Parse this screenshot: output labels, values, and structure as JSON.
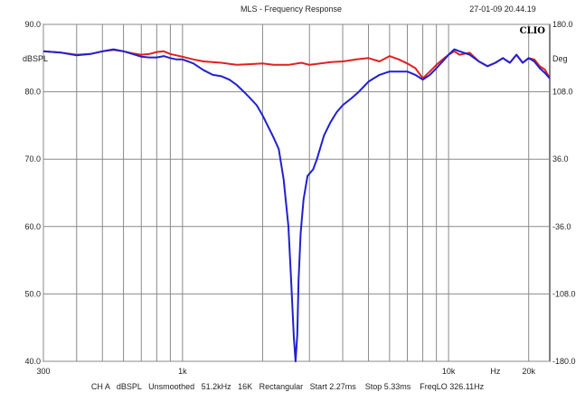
{
  "chart_data": {
    "type": "line",
    "title": "MLS - Frequency Response",
    "timestamp": "27-01-09 20.44.19",
    "logo": "CLIO",
    "x_scale": "log",
    "xlim": [
      300,
      24000
    ],
    "ylim": [
      40,
      90
    ],
    "ylim_right": [
      -180,
      180
    ],
    "left_unit": "dBSPL",
    "right_unit": "Deg",
    "x_ticks": [
      {
        "value": 300,
        "label": "300"
      },
      {
        "value": 1000,
        "label": "1k"
      },
      {
        "value": 10000,
        "label": "10k"
      },
      {
        "value": 15000,
        "label": "Hz"
      },
      {
        "value": 20000,
        "label": "20k"
      }
    ],
    "y_ticks_left": [
      {
        "value": 90,
        "label": "90.0"
      },
      {
        "value": 80,
        "label": "80.0"
      },
      {
        "value": 70,
        "label": "70.0"
      },
      {
        "value": 60,
        "label": "60.0"
      },
      {
        "value": 50,
        "label": "50.0"
      },
      {
        "value": 40,
        "label": "40.0"
      }
    ],
    "y_ticks_right": [
      {
        "value": 180,
        "label": "180.0"
      },
      {
        "value": 108,
        "label": "108.0"
      },
      {
        "value": 36,
        "label": "36.0"
      },
      {
        "value": -36,
        "label": "-36.0"
      },
      {
        "value": -108,
        "label": "-108.0"
      },
      {
        "value": -180,
        "label": "-180.0"
      }
    ],
    "x_gridlines": [
      300,
      400,
      500,
      600,
      700,
      800,
      900,
      1000,
      2000,
      3000,
      4000,
      5000,
      6000,
      7000,
      8000,
      9000,
      10000,
      20000
    ],
    "grid": true,
    "series": [
      {
        "color": "#e02020",
        "points": [
          [
            300,
            86.0
          ],
          [
            350,
            85.8
          ],
          [
            400,
            85.5
          ],
          [
            450,
            85.6
          ],
          [
            500,
            86.0
          ],
          [
            550,
            86.2
          ],
          [
            600,
            86.0
          ],
          [
            650,
            85.7
          ],
          [
            700,
            85.5
          ],
          [
            750,
            85.6
          ],
          [
            800,
            85.9
          ],
          [
            850,
            86.0
          ],
          [
            900,
            85.6
          ],
          [
            1000,
            85.2
          ],
          [
            1100,
            84.8
          ],
          [
            1200,
            84.5
          ],
          [
            1400,
            84.3
          ],
          [
            1600,
            84.0
          ],
          [
            1800,
            84.1
          ],
          [
            2000,
            84.2
          ],
          [
            2200,
            84.0
          ],
          [
            2500,
            84.0
          ],
          [
            2800,
            84.3
          ],
          [
            3000,
            84.0
          ],
          [
            3300,
            84.2
          ],
          [
            3600,
            84.4
          ],
          [
            4000,
            84.5
          ],
          [
            4500,
            84.8
          ],
          [
            5000,
            85.0
          ],
          [
            5500,
            84.5
          ],
          [
            6000,
            85.3
          ],
          [
            6500,
            84.8
          ],
          [
            7000,
            84.2
          ],
          [
            7500,
            83.5
          ],
          [
            8000,
            82.0
          ],
          [
            8500,
            83.0
          ],
          [
            9000,
            84.0
          ],
          [
            9500,
            84.8
          ],
          [
            10000,
            85.5
          ],
          [
            10500,
            86.0
          ],
          [
            11000,
            85.5
          ],
          [
            12000,
            85.8
          ],
          [
            13000,
            84.5
          ],
          [
            14000,
            83.8
          ],
          [
            15000,
            84.3
          ],
          [
            16000,
            85.0
          ],
          [
            17000,
            84.3
          ],
          [
            18000,
            85.5
          ],
          [
            19000,
            84.3
          ],
          [
            20000,
            85.0
          ],
          [
            21000,
            84.8
          ],
          [
            22000,
            83.8
          ],
          [
            23000,
            83.3
          ],
          [
            24000,
            82.0
          ]
        ]
      },
      {
        "color": "#2020d0",
        "points": [
          [
            300,
            86.0
          ],
          [
            350,
            85.8
          ],
          [
            400,
            85.4
          ],
          [
            450,
            85.6
          ],
          [
            500,
            86.0
          ],
          [
            550,
            86.3
          ],
          [
            600,
            86.0
          ],
          [
            650,
            85.6
          ],
          [
            700,
            85.2
          ],
          [
            750,
            85.1
          ],
          [
            800,
            85.1
          ],
          [
            850,
            85.3
          ],
          [
            900,
            85.0
          ],
          [
            950,
            84.8
          ],
          [
            1000,
            84.8
          ],
          [
            1050,
            84.5
          ],
          [
            1100,
            84.2
          ],
          [
            1200,
            83.2
          ],
          [
            1300,
            82.5
          ],
          [
            1400,
            82.3
          ],
          [
            1500,
            81.8
          ],
          [
            1600,
            81.0
          ],
          [
            1700,
            80.0
          ],
          [
            1800,
            79.0
          ],
          [
            1900,
            78.0
          ],
          [
            2000,
            76.5
          ],
          [
            2100,
            74.8
          ],
          [
            2200,
            73.2
          ],
          [
            2300,
            71.5
          ],
          [
            2400,
            67.0
          ],
          [
            2500,
            60.0
          ],
          [
            2560,
            52.0
          ],
          [
            2620,
            43.5
          ],
          [
            2660,
            40.0
          ],
          [
            2700,
            44.0
          ],
          [
            2730,
            52.0
          ],
          [
            2780,
            59.0
          ],
          [
            2850,
            64.0
          ],
          [
            2950,
            67.5
          ],
          [
            3100,
            68.5
          ],
          [
            3200,
            70.0
          ],
          [
            3400,
            73.5
          ],
          [
            3600,
            75.5
          ],
          [
            3800,
            77.0
          ],
          [
            4000,
            78.0
          ],
          [
            4300,
            79.0
          ],
          [
            4600,
            80.0
          ],
          [
            5000,
            81.5
          ],
          [
            5500,
            82.5
          ],
          [
            6000,
            83.0
          ],
          [
            6500,
            83.0
          ],
          [
            7000,
            83.0
          ],
          [
            7500,
            82.5
          ],
          [
            8000,
            81.8
          ],
          [
            8500,
            82.5
          ],
          [
            9000,
            83.5
          ],
          [
            9500,
            84.5
          ],
          [
            10000,
            85.5
          ],
          [
            10500,
            86.3
          ],
          [
            11000,
            86.0
          ],
          [
            12000,
            85.5
          ],
          [
            13000,
            84.5
          ],
          [
            14000,
            83.8
          ],
          [
            15000,
            84.3
          ],
          [
            16000,
            85.0
          ],
          [
            17000,
            84.3
          ],
          [
            18000,
            85.5
          ],
          [
            19000,
            84.3
          ],
          [
            20000,
            85.0
          ],
          [
            21000,
            84.5
          ],
          [
            22000,
            83.5
          ],
          [
            23000,
            82.8
          ],
          [
            24000,
            82.0
          ]
        ]
      }
    ],
    "footer": "CH A   dBSPL   Unsmoothed   51.2kHz   16K   Rectangular   Start 2.27ms    Stop 5.33ms    FreqLO 326.11Hz"
  }
}
